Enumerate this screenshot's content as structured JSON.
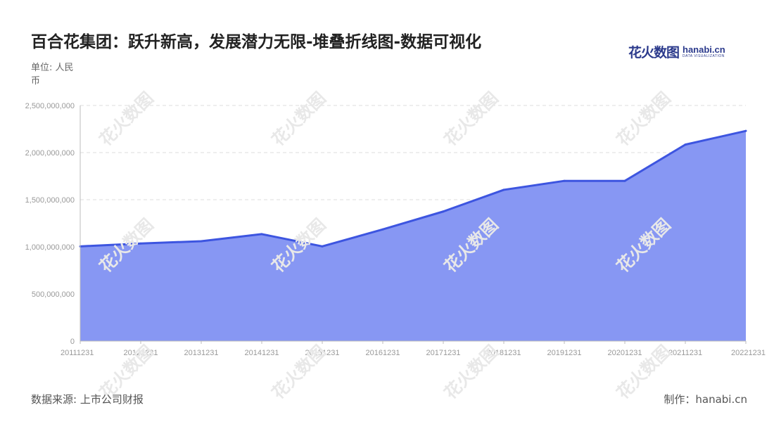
{
  "title": "百合花集团：跃升新高，发展潜力无限-堆叠折线图-数据可视化",
  "unit_label": "单位: 人民币",
  "source": "数据来源: 上市公司财报",
  "credit": "制作：hanabi.cn",
  "logo": {
    "cn": "花火数图",
    "en": "hanabi.cn",
    "sub": "DATA VISUALIZATION"
  },
  "watermark": "花火数图",
  "colors": {
    "line": "#3d55e0",
    "fill": "#8797f3",
    "grid": "#dddddd",
    "axis_text": "#999999"
  },
  "chart_data": {
    "type": "area",
    "title": "百合花集团：跃升新高，发展潜力无限-堆叠折线图-数据可视化",
    "ylabel": "单位: 人民币",
    "x": [
      "20111231",
      "20121231",
      "20131231",
      "20141231",
      "20151231",
      "20161231",
      "20171231",
      "20181231",
      "20191231",
      "20201231",
      "20211231",
      "20221231"
    ],
    "values": [
      1005000000,
      1035000000,
      1060000000,
      1135000000,
      1005000000,
      1185000000,
      1375000000,
      1605000000,
      1700000000,
      1700000000,
      2085000000,
      2230000000
    ],
    "y_ticks": [
      "0",
      "500,000,000",
      "1,000,000,000",
      "1,500,000,000",
      "2,000,000,000",
      "2,500,000,000"
    ],
    "ylim": [
      0,
      2500000000
    ],
    "grid": true,
    "legend": "none"
  }
}
